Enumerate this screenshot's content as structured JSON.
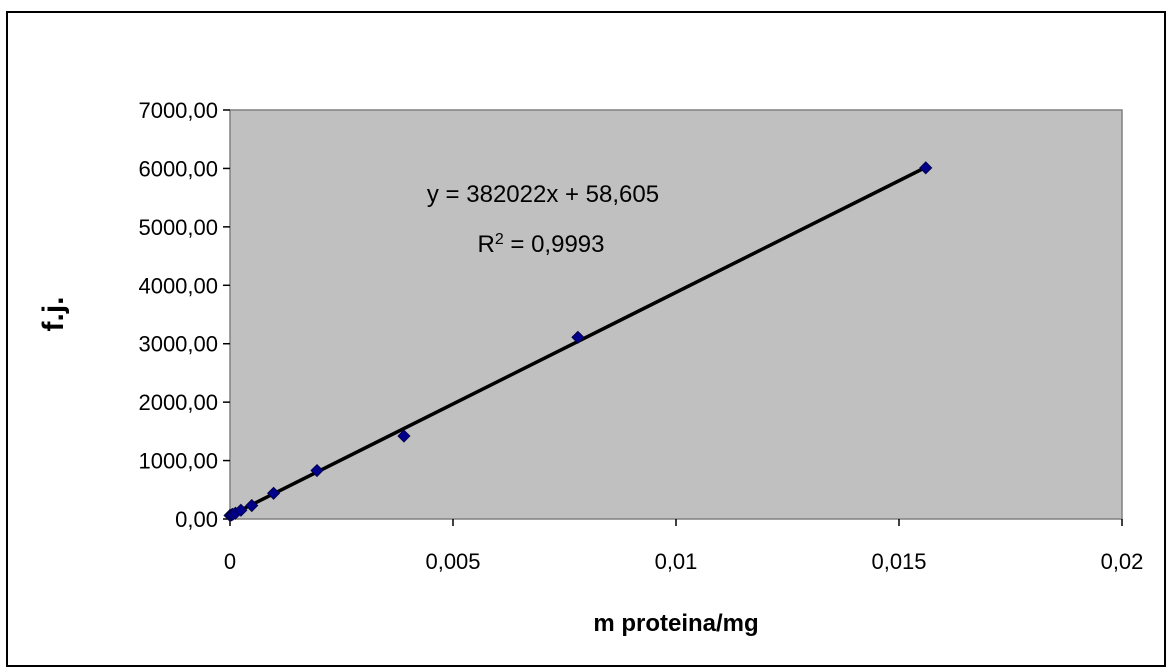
{
  "chart_data": {
    "type": "scatter",
    "xlabel": "m proteina/mg",
    "ylabel": "f.j.",
    "xlim": [
      0,
      0.02
    ],
    "ylim": [
      0,
      7000
    ],
    "x_ticks": [
      "0",
      "0,005",
      "0,01",
      "0,015",
      "0,02"
    ],
    "y_ticks": [
      "0,00",
      "1000,00",
      "2000,00",
      "3000,00",
      "4000,00",
      "5000,00",
      "6000,00",
      "7000,00"
    ],
    "grid": false,
    "plot_background": "#c0c0c0",
    "marker_color": "#00008b",
    "trendline_color": "#000000",
    "series": [
      {
        "points": [
          {
            "x": 0.0,
            "y": 60
          },
          {
            "x": 3.05e-05,
            "y": 70
          },
          {
            "x": 6.1e-05,
            "y": 80
          },
          {
            "x": 0.000122,
            "y": 100
          },
          {
            "x": 0.000244,
            "y": 150
          },
          {
            "x": 0.000488,
            "y": 230
          },
          {
            "x": 0.000977,
            "y": 440
          },
          {
            "x": 0.00195,
            "y": 830
          },
          {
            "x": 0.0039,
            "y": 1420
          },
          {
            "x": 0.0078,
            "y": 3110
          },
          {
            "x": 0.0156,
            "y": 6010
          }
        ]
      }
    ],
    "trendline": {
      "slope": 382022,
      "intercept": 58.605,
      "equation_label": "y = 382022x + 58,605",
      "r2_prefix": "R",
      "r2_sup": "2",
      "r2_value": " = 0,9993"
    }
  }
}
